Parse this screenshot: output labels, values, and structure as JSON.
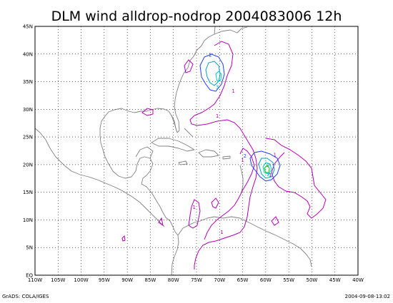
{
  "title": "DLM wind alldrop-nodrop 2004083006 12h",
  "axes": {
    "x_ticks": [
      "110W",
      "105W",
      "100W",
      "95W",
      "90W",
      "85W",
      "80W",
      "75W",
      "70W",
      "65W",
      "60W",
      "55W",
      "50W",
      "45W",
      "40W"
    ],
    "y_ticks": [
      "EQ",
      "5N",
      "10N",
      "15N",
      "20N",
      "25N",
      "30N",
      "35N",
      "40N",
      "45N"
    ],
    "x_range_deg": [
      -110,
      -40
    ],
    "y_range_deg": [
      0,
      45
    ],
    "grid": "dotted"
  },
  "contour_labels": [
    {
      "text": "1",
      "lon": -70.5,
      "lat": 28.5,
      "color": "#b400b4"
    },
    {
      "text": "1",
      "lon": -65,
      "lat": 20.5,
      "color": "#b400b4"
    },
    {
      "text": "1",
      "lon": -59,
      "lat": 17.8,
      "color": "#b400b4"
    },
    {
      "text": "1",
      "lon": -75.5,
      "lat": 12,
      "color": "#b400b4"
    },
    {
      "text": "1",
      "lon": -69.5,
      "lat": 7.5,
      "color": "#b400b4"
    },
    {
      "text": "1",
      "lon": -67,
      "lat": 33,
      "color": "#b400b4"
    },
    {
      "text": "1",
      "lon": -58,
      "lat": 21.5,
      "color": "#b400b4"
    },
    {
      "text": "2",
      "lon": -72,
      "lat": 39.5,
      "color": "#1e3cff"
    },
    {
      "text": "2",
      "lon": -64.5,
      "lat": 21.3,
      "color": "#1e3cff"
    },
    {
      "text": "3",
      "lon": -70.5,
      "lat": 33.7,
      "color": "#00a0c8"
    },
    {
      "text": "3",
      "lon": -59.5,
      "lat": 19.6,
      "color": "#00a0c8"
    },
    {
      "text": "3",
      "lon": -59.5,
      "lat": 17.9,
      "color": "#00a0c8"
    }
  ],
  "colors": {
    "c1": "#b400b4",
    "c2": "#1e3cff",
    "c3": "#00a0c8",
    "c4": "#00c8c8",
    "c5": "#00c800",
    "coast": "#808080",
    "frame": "#000000"
  },
  "footer": {
    "left": "GrADS: COLA/IGES",
    "right": "2004-09-08-13:02"
  }
}
